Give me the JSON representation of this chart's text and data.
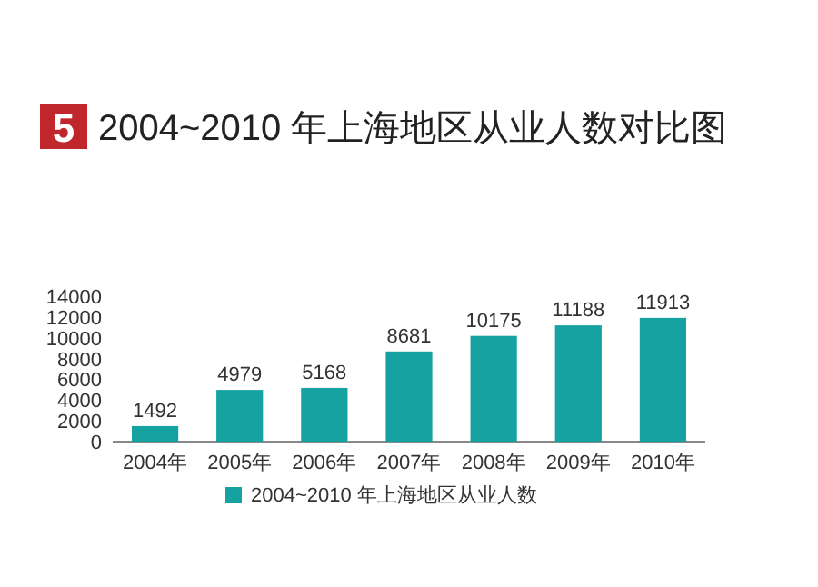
{
  "chart_data": {
    "type": "bar",
    "title": "2004~2010 年上海地区从业人数对比图",
    "annotations": [
      "5"
    ],
    "categories": [
      "2004年",
      "2005年",
      "2006年",
      "2007年",
      "2008年",
      "2009年",
      "2010年"
    ],
    "series": [
      {
        "name": "2004~2010 年上海地区从业人数",
        "color": "#17a2a2",
        "values": [
          1492,
          4979,
          5168,
          8681,
          10175,
          11188,
          11913
        ]
      }
    ],
    "ylim": [
      0,
      14000
    ],
    "yticks": [
      0,
      2000,
      4000,
      6000,
      8000,
      10000,
      12000,
      14000
    ],
    "grid": false,
    "legend": "bottom",
    "data_labels": true
  }
}
